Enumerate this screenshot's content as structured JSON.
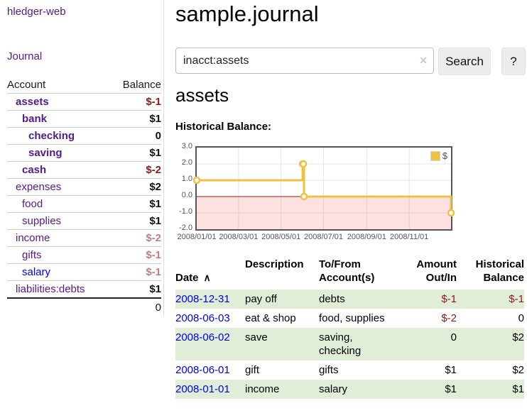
{
  "app": {
    "brand": "hledger-web",
    "nav_journal": "Journal"
  },
  "sidebar": {
    "header": {
      "account": "Account",
      "balance": "Balance"
    },
    "accounts": [
      {
        "name": "assets",
        "indent": 1,
        "bold": true,
        "balance": "$-1",
        "negative": true,
        "visited": true
      },
      {
        "name": "bank",
        "indent": 2,
        "bold": true,
        "balance": "$1",
        "negative": false,
        "visited": true
      },
      {
        "name": "checking",
        "indent": 3,
        "bold": true,
        "balance": "0",
        "negative": false,
        "visited": true
      },
      {
        "name": "saving",
        "indent": 3,
        "bold": true,
        "balance": "$1",
        "negative": false,
        "visited": true
      },
      {
        "name": "cash",
        "indent": 2,
        "bold": true,
        "balance": "$-2",
        "negative": true,
        "visited": true
      },
      {
        "name": "expenses",
        "indent": 1,
        "bold": false,
        "balance": "$2",
        "negative": false,
        "visited": true
      },
      {
        "name": "food",
        "indent": 2,
        "bold": false,
        "balance": "$1",
        "negative": false,
        "visited": true
      },
      {
        "name": "supplies",
        "indent": 2,
        "bold": false,
        "balance": "$1",
        "negative": false,
        "visited": true
      },
      {
        "name": "income",
        "indent": 1,
        "bold": false,
        "balance": "$-2",
        "negative": true,
        "visited": true
      },
      {
        "name": "gifts",
        "indent": 2,
        "bold": false,
        "balance": "$-1",
        "negative": true,
        "visited": true
      },
      {
        "name": "salary",
        "indent": 2,
        "bold": false,
        "balance": "$-1",
        "negative": true,
        "visited": false
      },
      {
        "name": "liabilities:debts",
        "indent": 1,
        "bold": false,
        "balance": "$1",
        "negative": false,
        "visited": true
      }
    ],
    "total_balance": "0"
  },
  "main": {
    "title": "sample.journal",
    "search": {
      "value": "inacct:assets",
      "clear_icon": "✕",
      "search_button": "Search",
      "help_button": "?"
    },
    "account_heading": "assets",
    "section_label": "Historical Balance:"
  },
  "chart_data": {
    "type": "line",
    "step": true,
    "title": "Historical Balance",
    "series": [
      {
        "name": "$",
        "color": "#edc240",
        "points": [
          [
            "2008-01-01",
            1
          ],
          [
            "2008-06-01",
            2
          ],
          [
            "2008-06-02",
            2
          ],
          [
            "2008-06-03",
            0
          ],
          [
            "2008-12-31",
            -1
          ]
        ]
      }
    ],
    "x_range": [
      "2008-01-01",
      "2008-12-31"
    ],
    "x_ticks": [
      {
        "label": "2008/01/01",
        "date": "2008-01-01"
      },
      {
        "label": "2008/03/01",
        "date": "2008-03-01"
      },
      {
        "label": "2008/05/01",
        "date": "2008-05-01"
      },
      {
        "label": "2008/07/01",
        "date": "2008-07-01"
      },
      {
        "label": "2008/09/01",
        "date": "2008-09-01"
      },
      {
        "label": "2008/11/01",
        "date": "2008-11-01"
      }
    ],
    "y_ticks": [
      {
        "label": "3.0",
        "value": 3
      },
      {
        "label": "2.0",
        "value": 2
      },
      {
        "label": "1.0",
        "value": 1
      },
      {
        "label": "0.0",
        "value": 0
      },
      {
        "label": "-1.0",
        "value": -1
      },
      {
        "label": "-2.0",
        "value": -2
      }
    ],
    "ylim": [
      -2,
      3
    ],
    "grid": true,
    "legend_position": "top-right",
    "gridline_color": "#e6e6e6",
    "negative_fill": "rgba(255,0,0,0.12)",
    "zero_line_color": "#8b1a1a"
  },
  "register": {
    "columns": [
      "Date",
      "Description",
      "To/From\nAccount(s)",
      "Amount\nOut/In",
      "Historical\nBalance"
    ],
    "sort_indicator": "∧",
    "rows": [
      {
        "date": "2008-12-31",
        "description": "pay off",
        "accounts": "debts",
        "amount": "$-1",
        "amount_neg": true,
        "balance": "$-1",
        "balance_neg": true
      },
      {
        "date": "2008-06-03",
        "description": "eat & shop",
        "accounts": "food, supplies",
        "amount": "$-2",
        "amount_neg": true,
        "balance": "0",
        "balance_neg": false
      },
      {
        "date": "2008-06-02",
        "description": "save",
        "accounts": "saving,\nchecking",
        "amount": "0",
        "amount_neg": false,
        "balance": "$2",
        "balance_neg": false
      },
      {
        "date": "2008-06-01",
        "description": "gift",
        "accounts": "gifts",
        "amount": "$1",
        "amount_neg": false,
        "balance": "$2",
        "balance_neg": false
      },
      {
        "date": "2008-01-01",
        "description": "income",
        "accounts": "salary",
        "amount": "$1",
        "amount_neg": false,
        "balance": "$1",
        "balance_neg": false
      }
    ]
  },
  "colors": {
    "link_visited_purple": "#551a8b",
    "link_blue": "#0000e8",
    "negative_strong": "#8b1a1a",
    "negative_soft": "#c07e7e",
    "row_green": "#e0eed8",
    "chart_line_gold": "#edc240"
  }
}
